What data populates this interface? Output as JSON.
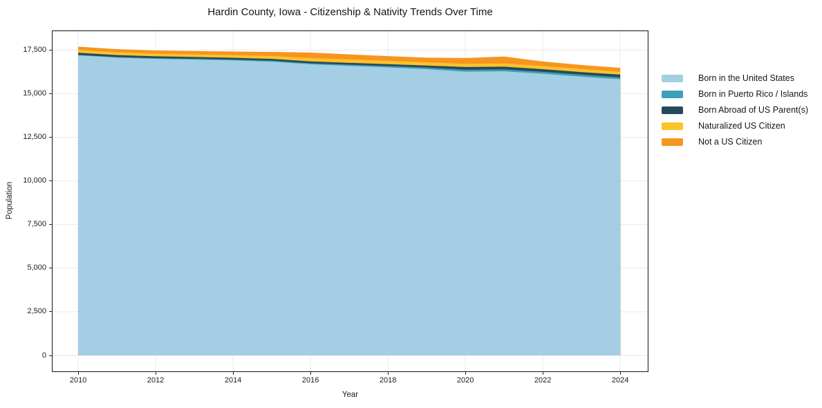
{
  "chart_data": {
    "type": "area",
    "stacked": true,
    "title": "Hardin County, Iowa - Citizenship & Nativity Trends Over Time",
    "xlabel": "Year",
    "ylabel": "Population",
    "x": [
      2010,
      2011,
      2012,
      2013,
      2014,
      2015,
      2016,
      2017,
      2018,
      2019,
      2020,
      2021,
      2022,
      2023,
      2024
    ],
    "series": [
      {
        "name": "Born in the United States",
        "color": "#a3cee4",
        "values": [
          17190,
          17060,
          16990,
          16950,
          16900,
          16830,
          16680,
          16590,
          16500,
          16400,
          16260,
          16280,
          16140,
          15970,
          15820
        ]
      },
      {
        "name": "Born in Puerto Rico / Islands",
        "color": "#3ca0b8",
        "values": [
          30,
          35,
          40,
          45,
          50,
          55,
          60,
          70,
          80,
          90,
          105,
          105,
          110,
          115,
          110
        ]
      },
      {
        "name": "Born Abroad of US Parent(s)",
        "color": "#27495c",
        "values": [
          120,
          115,
          110,
          105,
          105,
          105,
          105,
          105,
          110,
          120,
          160,
          160,
          150,
          150,
          160
        ]
      },
      {
        "name": "Naturalized US Citizen",
        "color": "#fcc32c",
        "values": [
          160,
          155,
          150,
          150,
          155,
          165,
          195,
          195,
          190,
          185,
          185,
          185,
          180,
          170,
          160
        ]
      },
      {
        "name": "Not a US Citizen",
        "color": "#f79520",
        "values": [
          190,
          185,
          180,
          190,
          200,
          235,
          310,
          290,
          270,
          265,
          330,
          395,
          260,
          235,
          225
        ]
      }
    ],
    "xlim": [
      2009.32,
      2024.73
    ],
    "ylim": [
      -950,
      18620
    ],
    "xticks": [
      {
        "v": 2010,
        "label": "2010"
      },
      {
        "v": 2012,
        "label": "2012"
      },
      {
        "v": 2014,
        "label": "2014"
      },
      {
        "v": 2016,
        "label": "2016"
      },
      {
        "v": 2018,
        "label": "2018"
      },
      {
        "v": 2020,
        "label": "2020"
      },
      {
        "v": 2022,
        "label": "2022"
      },
      {
        "v": 2024,
        "label": "2024"
      }
    ],
    "yticks": [
      {
        "v": 0,
        "label": "0"
      },
      {
        "v": 2500,
        "label": "2,500"
      },
      {
        "v": 5000,
        "label": "5,000"
      },
      {
        "v": 7500,
        "label": "7,500"
      },
      {
        "v": 10000,
        "label": "10,000"
      },
      {
        "v": 12500,
        "label": "12,500"
      },
      {
        "v": 15000,
        "label": "15,000"
      },
      {
        "v": 17500,
        "label": "17,500"
      }
    ],
    "grid": true,
    "grid_color": "#e9e9e9",
    "spine_color": "#222222",
    "legend_position": "right outside"
  }
}
